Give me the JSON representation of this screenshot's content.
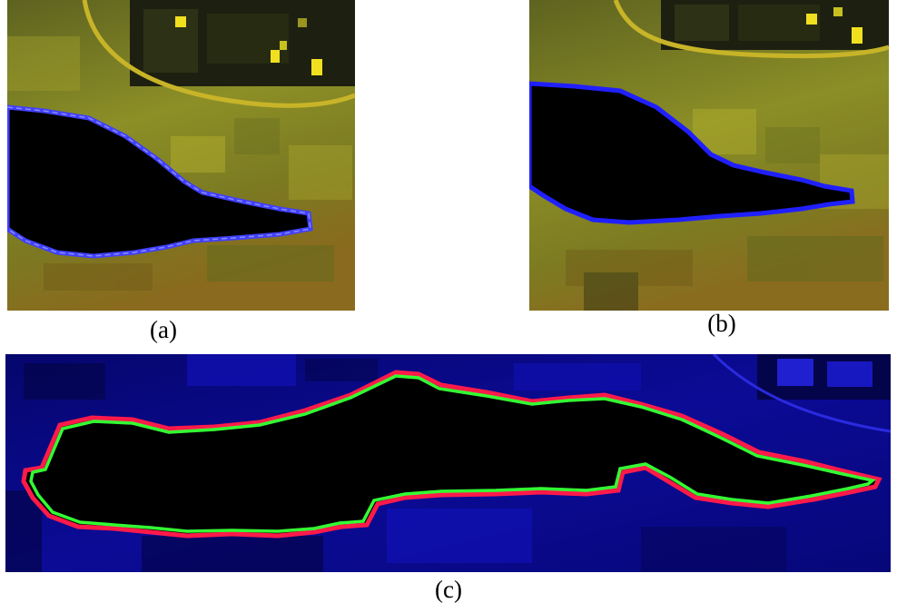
{
  "figure": {
    "panels": [
      {
        "id": "a",
        "caption": "(a)"
      },
      {
        "id": "b",
        "caption": "(b)"
      },
      {
        "id": "c",
        "caption": "(c)"
      }
    ]
  },
  "colors": {
    "terrain_light": "#9a9a28",
    "terrain_dark": "#4e5418",
    "water": "#000000",
    "boundary_blue": "#3b3bff",
    "boundary_blue_light": "#6f6fff",
    "building_yellow": "#f0e020",
    "road_yellow": "#c8b428",
    "panel_c_background": "#0a0a8c",
    "boundary_red": "#ff1a4a",
    "boundary_green": "#33ff33"
  }
}
